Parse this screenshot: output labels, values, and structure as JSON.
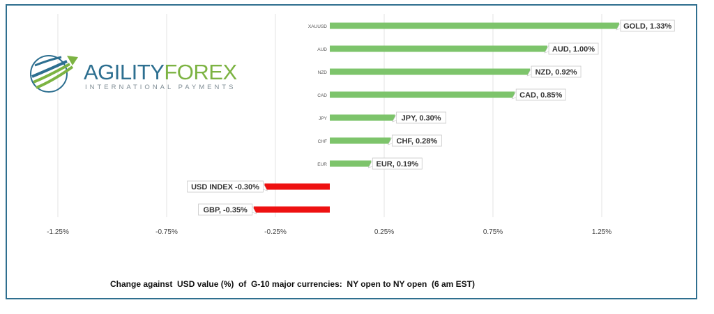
{
  "brand": {
    "name_part1": "AGILITY",
    "name_part2": "FOREX",
    "tagline": "INTERNATIONAL PAYMENTS"
  },
  "colors": {
    "positive": "#7dc46b",
    "negative": "#ee1111",
    "border": "#2f6f8f"
  },
  "footer_caption": "Change against  USD value (%)  of  G-10 major currencies:  NY open to NY open  (6 am EST)",
  "chart_data": {
    "type": "bar",
    "orientation": "horizontal",
    "categories": [
      "XAUUSD",
      "AUD",
      "NZD",
      "CAD",
      "JPY",
      "CHF",
      "EUR",
      "",
      ""
    ],
    "values": [
      1.33,
      1.0,
      0.92,
      0.85,
      0.3,
      0.28,
      0.19,
      -0.3,
      -0.35
    ],
    "data_labels": [
      "GOLD, 1.33%",
      "AUD, 1.00%",
      "NZD, 0.92%",
      "CAD, 0.85%",
      "JPY, 0.30%",
      "CHF, 0.28%",
      "EUR, 0.19%",
      "USD INDEX -0.30%",
      "GBP, -0.35%"
    ],
    "x_ticks": [
      -1.25,
      -0.75,
      -0.25,
      0.25,
      0.75,
      1.25
    ],
    "x_tick_labels": [
      "-1.25%",
      "-0.75%",
      "-0.25%",
      "0.25%",
      "0.75%",
      "1.25%"
    ],
    "xlim": [
      -1.5,
      1.5
    ],
    "grid": "vertical",
    "legend": "none"
  }
}
